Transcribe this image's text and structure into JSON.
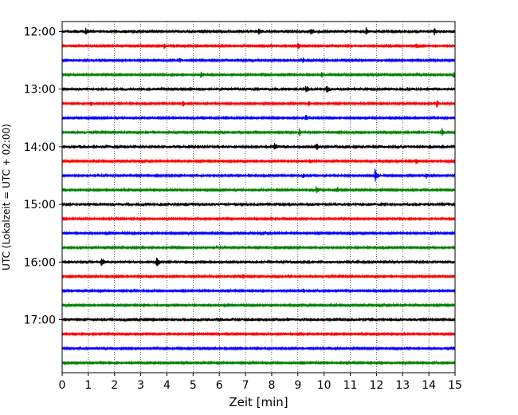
{
  "chart_data": {
    "type": "line",
    "subtype": "helicorder",
    "title": "",
    "xlabel": "Zeit  [min]",
    "ylabel": "UTC (Lokalzeit = UTC + 02:00)",
    "xlim": [
      0,
      15
    ],
    "x_ticks": [
      "0",
      "1",
      "2",
      "3",
      "4",
      "5",
      "6",
      "7",
      "8",
      "9",
      "10",
      "11",
      "12",
      "13",
      "14",
      "15"
    ],
    "y_ticks": [
      "12:00",
      "13:00",
      "14:00",
      "15:00",
      "16:00",
      "17:00"
    ],
    "vertical_grid": "dotted, every minute",
    "trace_colors": [
      "#000000",
      "#ff0000",
      "#0000ff",
      "#008000"
    ],
    "traces_per_hour": 4,
    "trace_start_times": [
      "12:00",
      "12:15",
      "12:30",
      "12:45",
      "13:00",
      "13:15",
      "13:30",
      "13:45",
      "14:00",
      "14:15",
      "14:30",
      "14:45",
      "15:00",
      "15:15",
      "15:30",
      "15:45",
      "16:00",
      "16:15",
      "16:30",
      "16:45",
      "17:00",
      "17:15",
      "17:30",
      "17:45"
    ],
    "events": [
      {
        "trace": 0,
        "minute": 0.9,
        "amp": 0.35
      },
      {
        "trace": 0,
        "minute": 7.5,
        "amp": 0.4
      },
      {
        "trace": 0,
        "minute": 9.5,
        "amp": 0.5
      },
      {
        "trace": 0,
        "minute": 11.6,
        "amp": 0.45
      },
      {
        "trace": 0,
        "minute": 14.2,
        "amp": 0.45
      },
      {
        "trace": 1,
        "minute": 3.9,
        "amp": 0.5
      },
      {
        "trace": 1,
        "minute": 9.0,
        "amp": 0.55
      },
      {
        "trace": 1,
        "minute": 13.5,
        "amp": 0.45
      },
      {
        "trace": 2,
        "minute": 4.5,
        "amp": 0.3
      },
      {
        "trace": 2,
        "minute": 9.2,
        "amp": 0.35
      },
      {
        "trace": 3,
        "minute": 5.3,
        "amp": 0.55
      },
      {
        "trace": 3,
        "minute": 9.9,
        "amp": 0.4
      },
      {
        "trace": 3,
        "minute": 14.95,
        "amp": 0.5
      },
      {
        "trace": 4,
        "minute": 9.3,
        "amp": 0.5
      },
      {
        "trace": 4,
        "minute": 10.1,
        "amp": 0.45
      },
      {
        "trace": 5,
        "minute": 1.1,
        "amp": 0.3
      },
      {
        "trace": 5,
        "minute": 4.6,
        "amp": 0.45
      },
      {
        "trace": 5,
        "minute": 9.4,
        "amp": 0.5
      },
      {
        "trace": 5,
        "minute": 14.3,
        "amp": 0.45
      },
      {
        "trace": 6,
        "minute": 9.3,
        "amp": 0.4
      },
      {
        "trace": 7,
        "minute": 9.05,
        "amp": 0.55
      },
      {
        "trace": 7,
        "minute": 14.5,
        "amp": 0.55
      },
      {
        "trace": 8,
        "minute": 8.1,
        "amp": 0.5
      },
      {
        "trace": 8,
        "minute": 9.7,
        "amp": 0.45
      },
      {
        "trace": 9,
        "minute": 9.45,
        "amp": 0.4
      },
      {
        "trace": 9,
        "minute": 13.5,
        "amp": 0.45
      },
      {
        "trace": 10,
        "minute": 9.2,
        "amp": 0.35
      },
      {
        "trace": 10,
        "minute": 11.95,
        "amp": 1.1
      },
      {
        "trace": 10,
        "minute": 13.9,
        "amp": 0.4
      },
      {
        "trace": 11,
        "minute": 9.7,
        "amp": 0.55
      },
      {
        "trace": 11,
        "minute": 10.5,
        "amp": 0.4
      },
      {
        "trace": 16,
        "minute": 1.5,
        "amp": 0.75
      },
      {
        "trace": 16,
        "minute": 3.6,
        "amp": 0.75
      },
      {
        "trace": 17,
        "minute": 6.9,
        "amp": 0.3
      },
      {
        "trace": 18,
        "minute": 9.2,
        "amp": 0.3
      },
      {
        "trace": 19,
        "minute": 3.1,
        "amp": 0.25
      }
    ]
  }
}
